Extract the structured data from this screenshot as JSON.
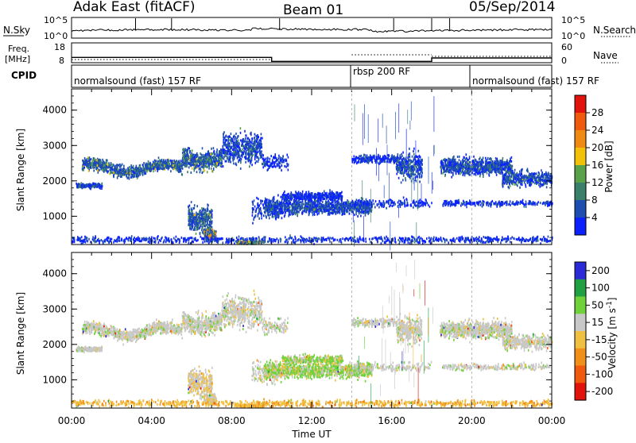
{
  "header": {
    "title_left": "Adak East (fitACF)",
    "title_center": "Beam 01",
    "title_right": "05/Sep/2014"
  },
  "colors": {
    "power_scale": [
      "#0b22ff",
      "#1e4fb0",
      "#3a7f6a",
      "#59a24a",
      "#f2c20a",
      "#f08a12",
      "#f05a0c",
      "#e0140c"
    ],
    "velocity_scale": [
      "#2a2ad6",
      "#20a040",
      "#6fd23a",
      "#c8c8c8",
      "#f0c040",
      "#f09018",
      "#f05a0c",
      "#e0140c"
    ],
    "ground": "#c0c0c0"
  },
  "chart_data": [
    {
      "type": "line",
      "panel": "noise",
      "ylabel_left": "N.Sky",
      "ylabel_right": "N.Search",
      "y_ticks_left": [
        "10^5",
        "10^0"
      ],
      "y_ticks_right": [
        "10^5",
        "10^0"
      ],
      "scale": "log"
    },
    {
      "type": "line",
      "panel": "frequency",
      "ylabel_left": "Freq.\n[MHz]",
      "ylabel_right": "Nave",
      "y_ticks_left": [
        18,
        8
      ],
      "y_ticks_right": [
        60,
        0
      ],
      "series": [
        {
          "name": "Freq.",
          "x": [
            0,
            10,
            10,
            18,
            18,
            24
          ],
          "y": [
            11.5,
            11.5,
            9.5,
            9.5,
            11.2,
            11.2
          ]
        }
      ]
    },
    {
      "type": "table",
      "panel": "cpid",
      "label": "CPID",
      "segments": [
        {
          "label": "normalsound (fast) 157 RF",
          "start": 0,
          "end": 14
        },
        {
          "label": "rbsp 200 RF",
          "start": 14,
          "end": 20
        },
        {
          "label": "normalsound (fast) 157 RF",
          "start": 20,
          "end": 24
        }
      ]
    },
    {
      "type": "heatmap",
      "panel": "power",
      "ylabel": "Slant Range [km]",
      "y_ticks": [
        1000,
        2000,
        3000,
        4000
      ],
      "ylim": [
        200,
        4600
      ],
      "xlim": [
        0,
        24
      ],
      "colorbar_label": "Power [dB]",
      "colorbar_ticks": [
        4,
        8,
        12,
        16,
        20,
        24,
        28
      ]
    },
    {
      "type": "heatmap",
      "panel": "velocity",
      "ylabel": "Slant Range [km]",
      "y_ticks": [
        1000,
        2000,
        3000,
        4000
      ],
      "ylim": [
        200,
        4600
      ],
      "xlim": [
        0,
        24
      ],
      "colorbar_label": "Velocity [m s^-1]",
      "colorbar_ticks": [
        200,
        100,
        50,
        15,
        -15,
        -50,
        -100,
        -200
      ],
      "x_ticks": [
        "00:00",
        "04:00",
        "08:00",
        "12:00",
        "16:00",
        "20:00",
        "00:00"
      ],
      "xlabel": "Time UT"
    }
  ]
}
